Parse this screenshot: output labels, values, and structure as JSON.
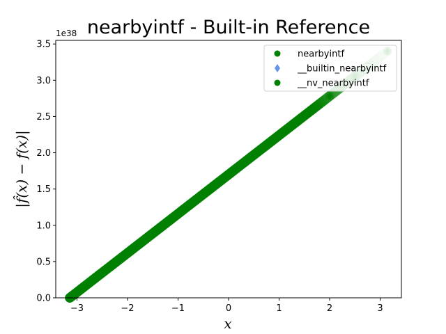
{
  "chart_data": {
    "type": "scatter",
    "title": "nearbyintf - Built-in Reference",
    "xlabel": "x",
    "ylabel": "|f̂(x) − f(x)|",
    "y_offset_label": "1e38",
    "xlim": [
      -3.42,
      3.42
    ],
    "ylim": [
      0,
      3.55
    ],
    "xticks": [
      -3,
      -2,
      -1,
      0,
      1,
      2,
      3
    ],
    "xtick_labels": [
      "−3",
      "−2",
      "−1",
      "0",
      "1",
      "2",
      "3"
    ],
    "yticks": [
      0.0,
      0.5,
      1.0,
      1.5,
      2.0,
      2.5,
      3.0,
      3.5
    ],
    "ytick_labels": [
      "0.0",
      "0.5",
      "1.0",
      "1.5",
      "2.0",
      "2.5",
      "3.0",
      "3.5"
    ],
    "grid": false,
    "legend_position": "top-right",
    "series": [
      {
        "name": "nearbyintf",
        "marker": "circle",
        "color": "#008000",
        "x": [
          -3.1416,
          -2.5,
          -2.0,
          -1.5,
          -1.0,
          -0.5,
          0.0,
          0.5,
          1.0,
          1.5,
          2.0,
          2.5,
          3.1416
        ],
        "y": [
          0.0,
          0.347,
          0.617,
          0.888,
          1.159,
          1.429,
          1.7,
          1.971,
          2.241,
          2.512,
          2.783,
          3.053,
          3.4
        ]
      },
      {
        "name": "__builtin_nearbyintf",
        "marker": "diamond",
        "color": "#6495ed",
        "x": [
          -3.1416,
          -2.5,
          -2.0,
          -1.5,
          -1.0,
          -0.5,
          0.0,
          0.5,
          1.0,
          1.5,
          2.0,
          2.5,
          3.1416
        ],
        "y": [
          0.0,
          0.347,
          0.617,
          0.888,
          1.159,
          1.429,
          1.7,
          1.971,
          2.241,
          2.512,
          2.783,
          3.053,
          3.4
        ]
      },
      {
        "name": "__nv_nearbyintf",
        "marker": "circle",
        "color": "#008000",
        "x": [
          -3.1416,
          -2.5,
          -2.0,
          -1.5,
          -1.0,
          -0.5,
          0.0,
          0.5,
          1.0,
          1.5,
          2.0,
          2.5,
          3.1416
        ],
        "y": [
          0.0,
          0.347,
          0.617,
          0.888,
          1.159,
          1.429,
          1.7,
          1.971,
          2.241,
          2.512,
          2.783,
          3.053,
          3.4
        ]
      }
    ]
  }
}
